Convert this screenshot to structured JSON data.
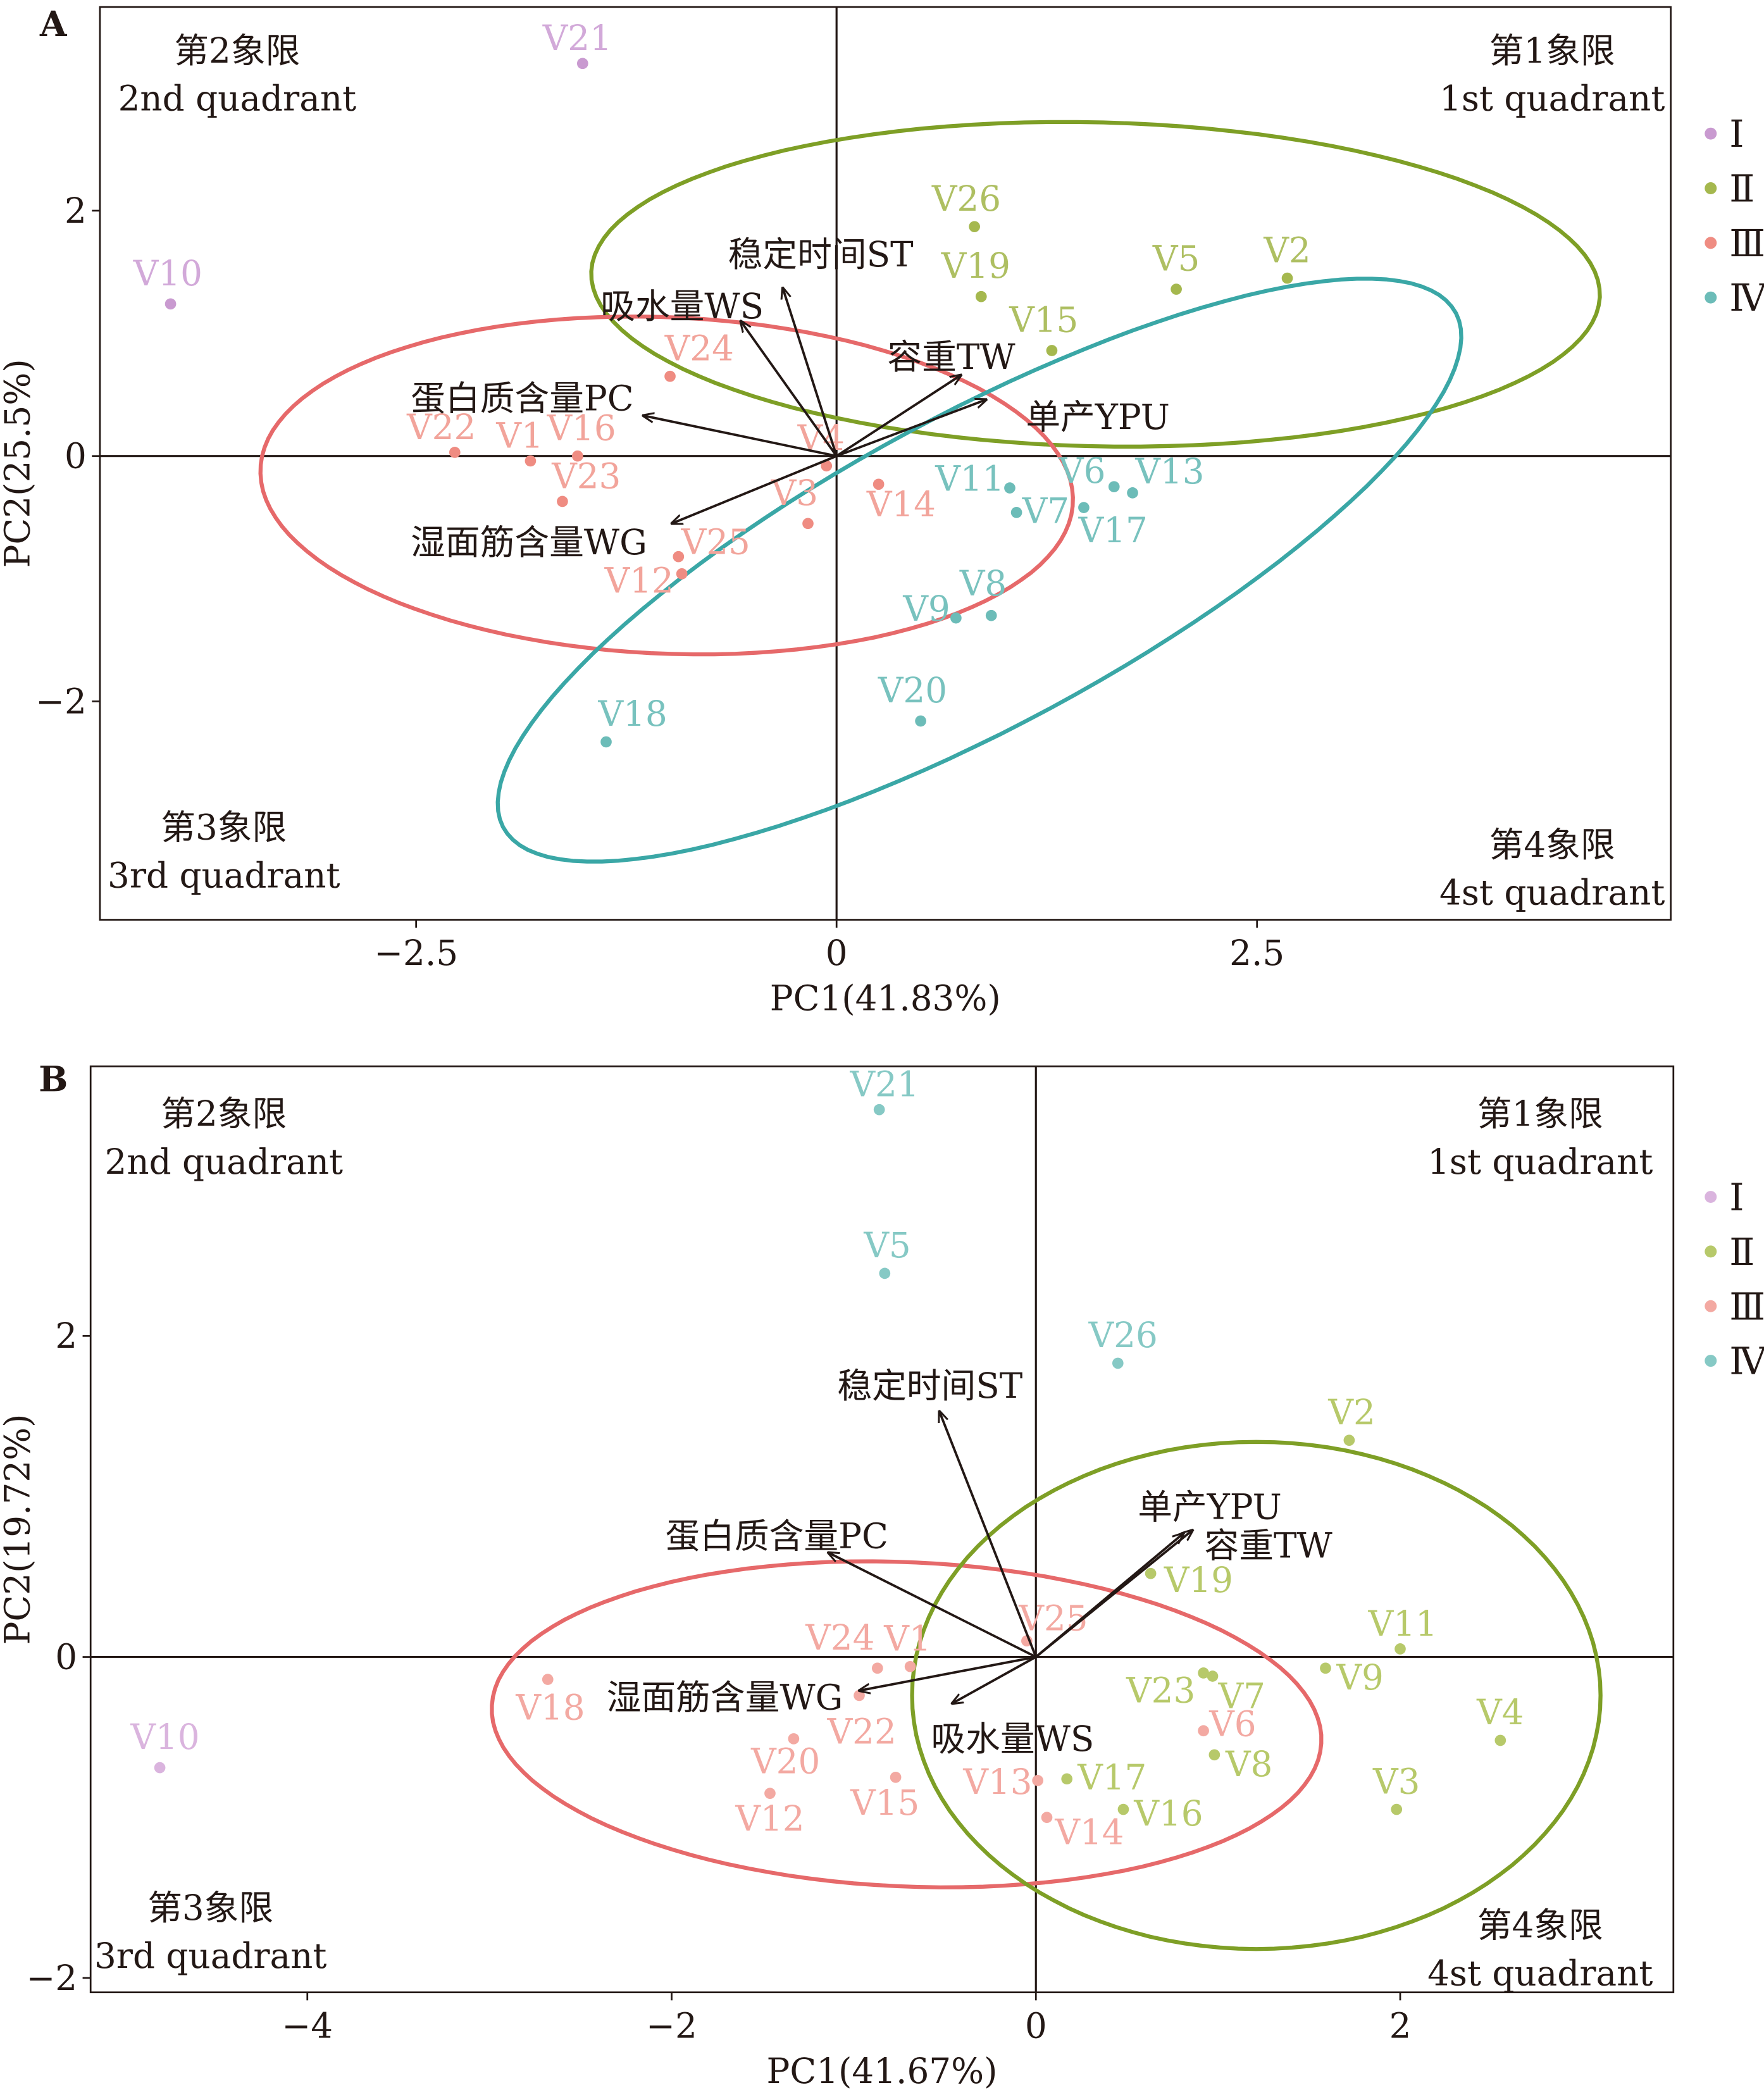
{
  "chart_data": [
    {
      "type": "scatter",
      "panel": "A",
      "xlabel": "PC1(41.83%)",
      "ylabel": "PC2(25.5%)",
      "xlim": [
        -4.38,
        4.96
      ],
      "ylim": [
        -3.78,
        3.66
      ],
      "xticks": [
        {
          "v": -2.5,
          "label": "−2.5"
        },
        {
          "v": 0,
          "label": "0"
        },
        {
          "v": 2.5,
          "label": "2.5"
        }
      ],
      "yticks": [
        {
          "v": -2,
          "label": "−2"
        },
        {
          "v": 0,
          "label": "0"
        },
        {
          "v": 2,
          "label": "2"
        }
      ],
      "quadrants": {
        "q1": [
          "第1象限",
          "1st quadrant"
        ],
        "q2": [
          "第2象限",
          "2nd quadrant"
        ],
        "q3": [
          "第3象限",
          "3rd quadrant"
        ],
        "q4": [
          "第4象限",
          "4st quadrant"
        ]
      },
      "legend": {
        "placement": "right",
        "entries": [
          {
            "group": "I",
            "label": "Ⅰ"
          },
          {
            "group": "II",
            "label": "Ⅱ"
          },
          {
            "group": "III",
            "label": "Ⅲ"
          },
          {
            "group": "IV",
            "label": "Ⅳ"
          }
        ]
      },
      "points": [
        {
          "name": "V21",
          "x": -1.51,
          "y": 3.2,
          "group": "I"
        },
        {
          "name": "V10",
          "x": -3.96,
          "y": 1.24,
          "group": "I"
        },
        {
          "name": "V26",
          "x": 0.82,
          "y": 1.87,
          "group": "II"
        },
        {
          "name": "V19",
          "x": 0.86,
          "y": 1.3,
          "group": "II"
        },
        {
          "name": "V5",
          "x": 2.02,
          "y": 1.36,
          "group": "II"
        },
        {
          "name": "V2",
          "x": 2.68,
          "y": 1.45,
          "group": "II"
        },
        {
          "name": "V15",
          "x": 1.28,
          "y": 0.86,
          "group": "II"
        },
        {
          "name": "V24",
          "x": -0.99,
          "y": 0.65,
          "group": "III"
        },
        {
          "name": "V22",
          "x": -2.27,
          "y": 0.03,
          "group": "III"
        },
        {
          "name": "V1",
          "x": -1.82,
          "y": -0.04,
          "group": "III"
        },
        {
          "name": "V16",
          "x": -1.54,
          "y": 0.0,
          "group": "III"
        },
        {
          "name": "V23",
          "x": -1.63,
          "y": -0.37,
          "group": "III"
        },
        {
          "name": "V4",
          "x": -0.06,
          "y": -0.08,
          "group": "III"
        },
        {
          "name": "V3",
          "x": -0.17,
          "y": -0.55,
          "group": "III"
        },
        {
          "name": "V14",
          "x": 0.25,
          "y": -0.23,
          "group": "III"
        },
        {
          "name": "V25",
          "x": -0.94,
          "y": -0.82,
          "group": "III"
        },
        {
          "name": "V12",
          "x": -0.92,
          "y": -0.96,
          "group": "III"
        },
        {
          "name": "V11",
          "x": 1.03,
          "y": -0.26,
          "group": "IV"
        },
        {
          "name": "V7",
          "x": 1.07,
          "y": -0.46,
          "group": "IV"
        },
        {
          "name": "V6",
          "x": 1.65,
          "y": -0.25,
          "group": "IV"
        },
        {
          "name": "V13",
          "x": 1.76,
          "y": -0.3,
          "group": "IV"
        },
        {
          "name": "V17",
          "x": 1.47,
          "y": -0.42,
          "group": "IV"
        },
        {
          "name": "V9",
          "x": 0.71,
          "y": -1.32,
          "group": "IV"
        },
        {
          "name": "V8",
          "x": 0.92,
          "y": -1.3,
          "group": "IV"
        },
        {
          "name": "V20",
          "x": 0.5,
          "y": -2.16,
          "group": "IV"
        },
        {
          "name": "V18",
          "x": -1.37,
          "y": -2.33,
          "group": "IV"
        }
      ],
      "loadings": [
        {
          "label": "稳定时间ST",
          "x": -0.32,
          "y": 1.37
        },
        {
          "label": "吸水量WS",
          "x": -0.57,
          "y": 1.1
        },
        {
          "label": "容重TW",
          "x": 0.74,
          "y": 0.66
        },
        {
          "label": "单产YPU",
          "x": 0.89,
          "y": 0.46
        },
        {
          "label": "蛋白质含量PC",
          "x": -1.15,
          "y": 0.33
        },
        {
          "label": "湿面筋含量WG",
          "x": -0.98,
          "y": -0.55
        }
      ],
      "ellipses": [
        {
          "group": "II",
          "cx": 1.54,
          "cy": 1.4,
          "rx": 3.0,
          "ry": 1.32,
          "angle": -2
        },
        {
          "group": "III",
          "cx": -1.01,
          "cy": -0.24,
          "rx": 2.42,
          "ry": 1.37,
          "angle": -4
        },
        {
          "group": "IV",
          "cx": 0.85,
          "cy": -0.93,
          "rx": 3.54,
          "ry": 1.15,
          "angle": 38.4
        }
      ]
    },
    {
      "type": "scatter",
      "panel": "B",
      "xlabel": "PC1(41.67%)",
      "ylabel": "PC2(19.72%)",
      "xlim": [
        -5.19,
        3.5
      ],
      "ylim": [
        -2.09,
        3.68
      ],
      "xticks": [
        {
          "v": -4,
          "label": "−4"
        },
        {
          "v": -2,
          "label": "−2"
        },
        {
          "v": 0,
          "label": "0"
        },
        {
          "v": 2,
          "label": "2"
        }
      ],
      "yticks": [
        {
          "v": -2,
          "label": "−2"
        },
        {
          "v": 0,
          "label": "0"
        },
        {
          "v": 2,
          "label": "2"
        }
      ],
      "quadrants": {
        "q1": [
          "第1象限",
          "1st quadrant"
        ],
        "q2": [
          "第2象限",
          "2nd quadrant"
        ],
        "q3": [
          "第3象限",
          "3rd quadrant"
        ],
        "q4": [
          "第4象限",
          "4st quadrant"
        ]
      },
      "legend": {
        "placement": "right",
        "entries": [
          {
            "group": "I",
            "label": "Ⅰ"
          },
          {
            "group": "II",
            "label": "Ⅱ"
          },
          {
            "group": "III",
            "label": "Ⅲ"
          },
          {
            "group": "IV",
            "label": "Ⅳ"
          }
        ]
      },
      "points": [
        {
          "name": "V21",
          "x": -0.86,
          "y": 3.41,
          "group": "IV"
        },
        {
          "name": "V5",
          "x": -0.83,
          "y": 2.39,
          "group": "IV"
        },
        {
          "name": "V26",
          "x": 0.45,
          "y": 1.83,
          "group": "IV"
        },
        {
          "name": "V10",
          "x": -4.81,
          "y": -0.69,
          "group": "I"
        },
        {
          "name": "V2",
          "x": 1.72,
          "y": 1.35,
          "group": "II"
        },
        {
          "name": "V19",
          "x": 0.63,
          "y": 0.52,
          "group": "II"
        },
        {
          "name": "V11",
          "x": 2.0,
          "y": 0.05,
          "group": "II"
        },
        {
          "name": "V9",
          "x": 1.59,
          "y": -0.07,
          "group": "II"
        },
        {
          "name": "V4",
          "x": 2.55,
          "y": -0.52,
          "group": "II"
        },
        {
          "name": "V3",
          "x": 1.98,
          "y": -0.95,
          "group": "II"
        },
        {
          "name": "V23",
          "x": 0.92,
          "y": -0.1,
          "group": "II"
        },
        {
          "name": "V7",
          "x": 0.97,
          "y": -0.12,
          "group": "II"
        },
        {
          "name": "V8",
          "x": 0.98,
          "y": -0.61,
          "group": "II"
        },
        {
          "name": "V17",
          "x": 0.17,
          "y": -0.76,
          "group": "II"
        },
        {
          "name": "V16",
          "x": 0.48,
          "y": -0.95,
          "group": "II"
        },
        {
          "name": "V6",
          "x": 0.92,
          "y": -0.46,
          "group": "III"
        },
        {
          "name": "V25",
          "x": -0.05,
          "y": 0.1,
          "group": "III"
        },
        {
          "name": "V13",
          "x": 0.01,
          "y": -0.77,
          "group": "III"
        },
        {
          "name": "V14",
          "x": 0.06,
          "y": -1.0,
          "group": "III"
        },
        {
          "name": "V24",
          "x": -0.87,
          "y": -0.07,
          "group": "III"
        },
        {
          "name": "V1",
          "x": -0.69,
          "y": -0.06,
          "group": "III"
        },
        {
          "name": "V22",
          "x": -0.97,
          "y": -0.24,
          "group": "III"
        },
        {
          "name": "V18",
          "x": -2.68,
          "y": -0.14,
          "group": "III"
        },
        {
          "name": "V20",
          "x": -1.33,
          "y": -0.51,
          "group": "III"
        },
        {
          "name": "V15",
          "x": -0.77,
          "y": -0.75,
          "group": "III"
        },
        {
          "name": "V12",
          "x": -1.46,
          "y": -0.85,
          "group": "III"
        }
      ],
      "loadings": [
        {
          "label": "稳定时间ST",
          "x": -0.53,
          "y": 1.53
        },
        {
          "label": "单产YPU",
          "x": 0.81,
          "y": 0.77
        },
        {
          "label": "容重TW",
          "x": 0.86,
          "y": 0.79
        },
        {
          "label": "蛋白质含量PC",
          "x": -1.14,
          "y": 0.65
        },
        {
          "label": "湿面筋含量WG",
          "x": -0.97,
          "y": -0.21
        },
        {
          "label": "吸水量WS",
          "x": -0.46,
          "y": -0.29
        }
      ],
      "ellipses": [
        {
          "group": "III",
          "cx": -0.71,
          "cy": -0.42,
          "rx": 2.28,
          "ry": 1.01,
          "angle": -3
        },
        {
          "group": "II",
          "cx": 1.21,
          "cy": -0.24,
          "rx": 1.89,
          "ry": 1.58,
          "angle": 0
        }
      ]
    }
  ],
  "colors": {
    "A": {
      "I": "#c99ad0",
      "II": "#a5b84e",
      "III": "#ef8c82",
      "IV": "#6cbcb8"
    },
    "A_label": {
      "I": "#d2a9d9",
      "II": "#aebf62",
      "III": "#f2a49b",
      "IV": "#78c2be"
    },
    "B": {
      "I": "#dab4de",
      "II": "#b7c96a",
      "III": "#f3a9a2",
      "IV": "#86c9c5"
    },
    "ellipse": {
      "II": "#7e9f26",
      "III": "#e6696a",
      "IV": "#3aa7a6"
    }
  }
}
